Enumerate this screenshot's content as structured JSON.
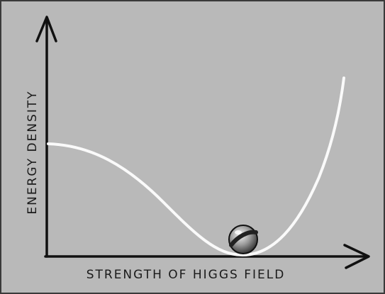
{
  "diagram": {
    "y_axis_label": "ENERGY DENSITY",
    "x_axis_label": "STRENGTH OF HIGGS FIELD"
  }
}
